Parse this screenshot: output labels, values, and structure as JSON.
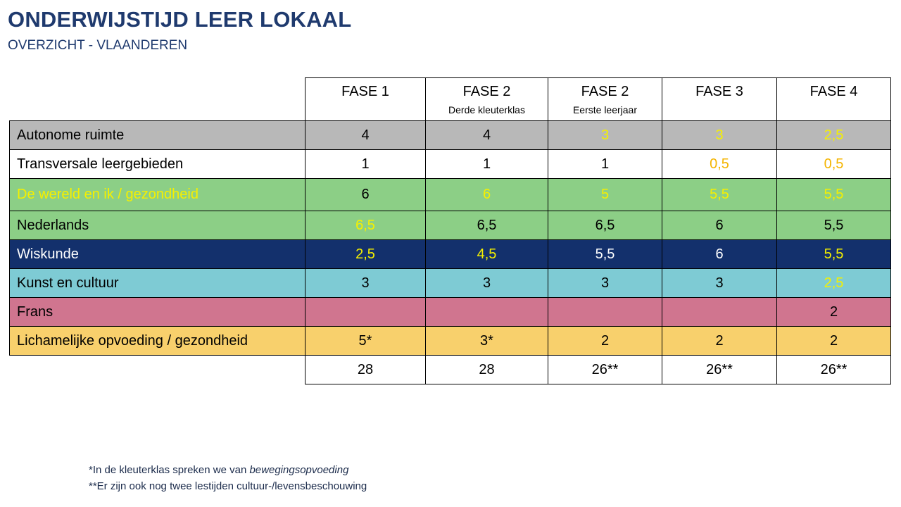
{
  "header": {
    "title": "ONDERWIJSTIJD  LEER LOKAAL",
    "subtitle": "OVERZICHT - VLAANDEREN"
  },
  "table": {
    "columns": [
      {
        "label": "FASE 1",
        "sublabel": ""
      },
      {
        "label": "FASE 2",
        "sublabel": "Derde kleuterklas"
      },
      {
        "label": "FASE 2",
        "sublabel": "Eerste leerjaar"
      },
      {
        "label": "FASE 3",
        "sublabel": ""
      },
      {
        "label": "FASE 4",
        "sublabel": ""
      }
    ],
    "rows": [
      {
        "label": "Autonome ruimte",
        "values": [
          "4",
          "4",
          "3",
          "3",
          "2,5"
        ],
        "bg": "#b8b8b8"
      },
      {
        "label": "Transversale leergebieden",
        "values": [
          "1",
          "1",
          "1",
          "0,5",
          "0,5"
        ],
        "bg": "#ffffff"
      },
      {
        "label": "De wereld en ik / gezondheid",
        "values": [
          "6",
          "6",
          "5",
          "5,5",
          "5,5"
        ],
        "bg": "#8ccf86"
      },
      {
        "label": "Nederlands",
        "values": [
          "6,5",
          "6,5",
          "6,5",
          "6",
          "5,5"
        ],
        "bg": "#8ccf86"
      },
      {
        "label": "Wiskunde",
        "values": [
          "2,5",
          "4,5",
          "5,5",
          "6",
          "5,5"
        ],
        "bg": "#13306c"
      },
      {
        "label": "Kunst en cultuur",
        "values": [
          "3",
          "3",
          "3",
          "3",
          "2,5"
        ],
        "bg": "#7ecbd4"
      },
      {
        "label": "Frans",
        "values": [
          "",
          "",
          "",
          "",
          "2"
        ],
        "bg": "#d0758f"
      },
      {
        "label": "Lichamelijke opvoeding / gezondheid",
        "values": [
          "5*",
          "3*",
          "2",
          "2",
          "2"
        ],
        "bg": "#f8d06c"
      }
    ],
    "totals": [
      "28",
      "28",
      "26**",
      "26**",
      "26**"
    ]
  },
  "footnotes": {
    "note1_text": "*In de kleuterklas spreken we van ",
    "note1_emphasis": "bewegingsopvoeding",
    "note2": "**Er zijn ook nog twee lestijden cultuur-/levensbeschouwing"
  },
  "colors": {
    "title": "#1f3a6e",
    "highlight_yellow": "#f5f000",
    "highlight_orange": "#f4b400"
  }
}
